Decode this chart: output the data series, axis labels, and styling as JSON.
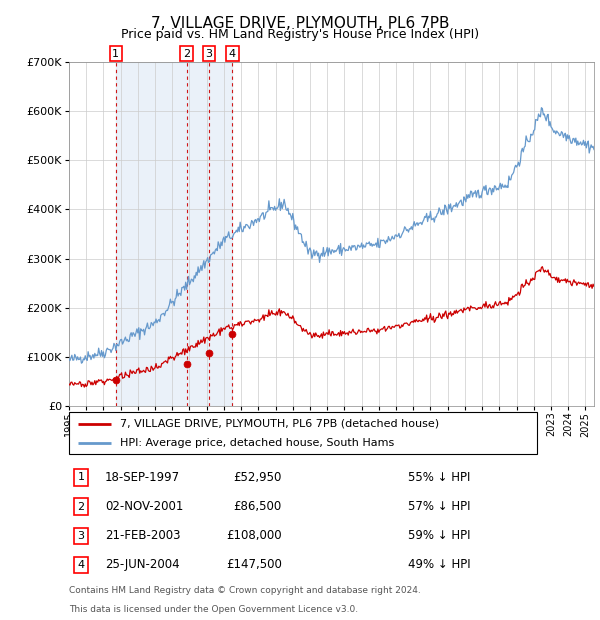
{
  "title": "7, VILLAGE DRIVE, PLYMOUTH, PL6 7PB",
  "subtitle": "Price paid vs. HM Land Registry's House Price Index (HPI)",
  "transactions": [
    {
      "id": 1,
      "date": "18-SEP-1997",
      "date_num": 1997.72,
      "price": 52950,
      "pct": "55% ↓ HPI"
    },
    {
      "id": 2,
      "date": "02-NOV-2001",
      "date_num": 2001.84,
      "price": 86500,
      "pct": "57% ↓ HPI"
    },
    {
      "id": 3,
      "date": "21-FEB-2003",
      "date_num": 2003.13,
      "price": 108000,
      "pct": "59% ↓ HPI"
    },
    {
      "id": 4,
      "date": "25-JUN-2004",
      "date_num": 2004.49,
      "price": 147500,
      "pct": "49% ↓ HPI"
    }
  ],
  "legend_house": "7, VILLAGE DRIVE, PLYMOUTH, PL6 7PB (detached house)",
  "legend_hpi": "HPI: Average price, detached house, South Hams",
  "footer1": "Contains HM Land Registry data © Crown copyright and database right 2024.",
  "footer2": "This data is licensed under the Open Government Licence v3.0.",
  "house_color": "#cc0000",
  "hpi_color": "#6699cc",
  "background_shading": "#dce9f5",
  "dashed_color": "#cc0000",
  "ylim": [
    0,
    700000
  ],
  "xlim": [
    1995.0,
    2025.5
  ],
  "yticks": [
    0,
    100000,
    200000,
    300000,
    400000,
    500000,
    600000,
    700000
  ],
  "xticks": [
    1995,
    1996,
    1997,
    1998,
    1999,
    2000,
    2001,
    2002,
    2003,
    2004,
    2005,
    2006,
    2007,
    2008,
    2009,
    2010,
    2011,
    2012,
    2013,
    2014,
    2015,
    2016,
    2017,
    2018,
    2019,
    2020,
    2021,
    2022,
    2023,
    2024,
    2025
  ]
}
